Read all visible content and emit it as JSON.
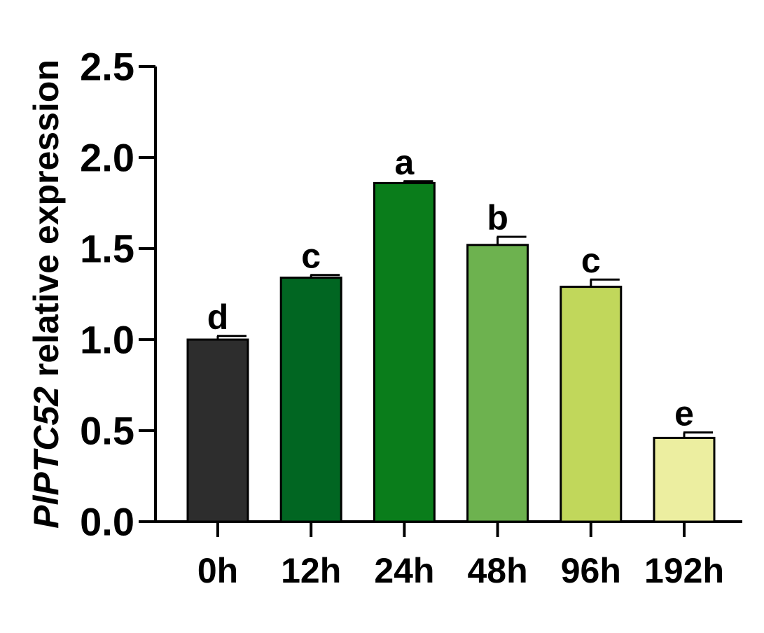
{
  "chart_data": {
    "type": "bar",
    "title": "",
    "xlabel": "",
    "ylabel_italic": "PlPTC52",
    "ylabel_rest": " relative expression",
    "ylim": [
      0,
      2.5
    ],
    "yticks": [
      "0.0",
      "0.5",
      "1.0",
      "1.5",
      "2.0",
      "2.5"
    ],
    "categories": [
      "0h",
      "12h",
      "24h",
      "48h",
      "96h",
      "192h"
    ],
    "values": [
      1.0,
      1.34,
      1.86,
      1.52,
      1.29,
      0.46
    ],
    "errors": [
      0.02,
      0.015,
      0.01,
      0.045,
      0.04,
      0.03
    ],
    "significance": [
      "d",
      "c",
      "a",
      "b",
      "c",
      "e"
    ],
    "colors": [
      "#2d2d2d",
      "#016622",
      "#0a7d1b",
      "#6db24f",
      "#c1d75b",
      "#eceea0"
    ],
    "grid": false,
    "legend": "none"
  }
}
